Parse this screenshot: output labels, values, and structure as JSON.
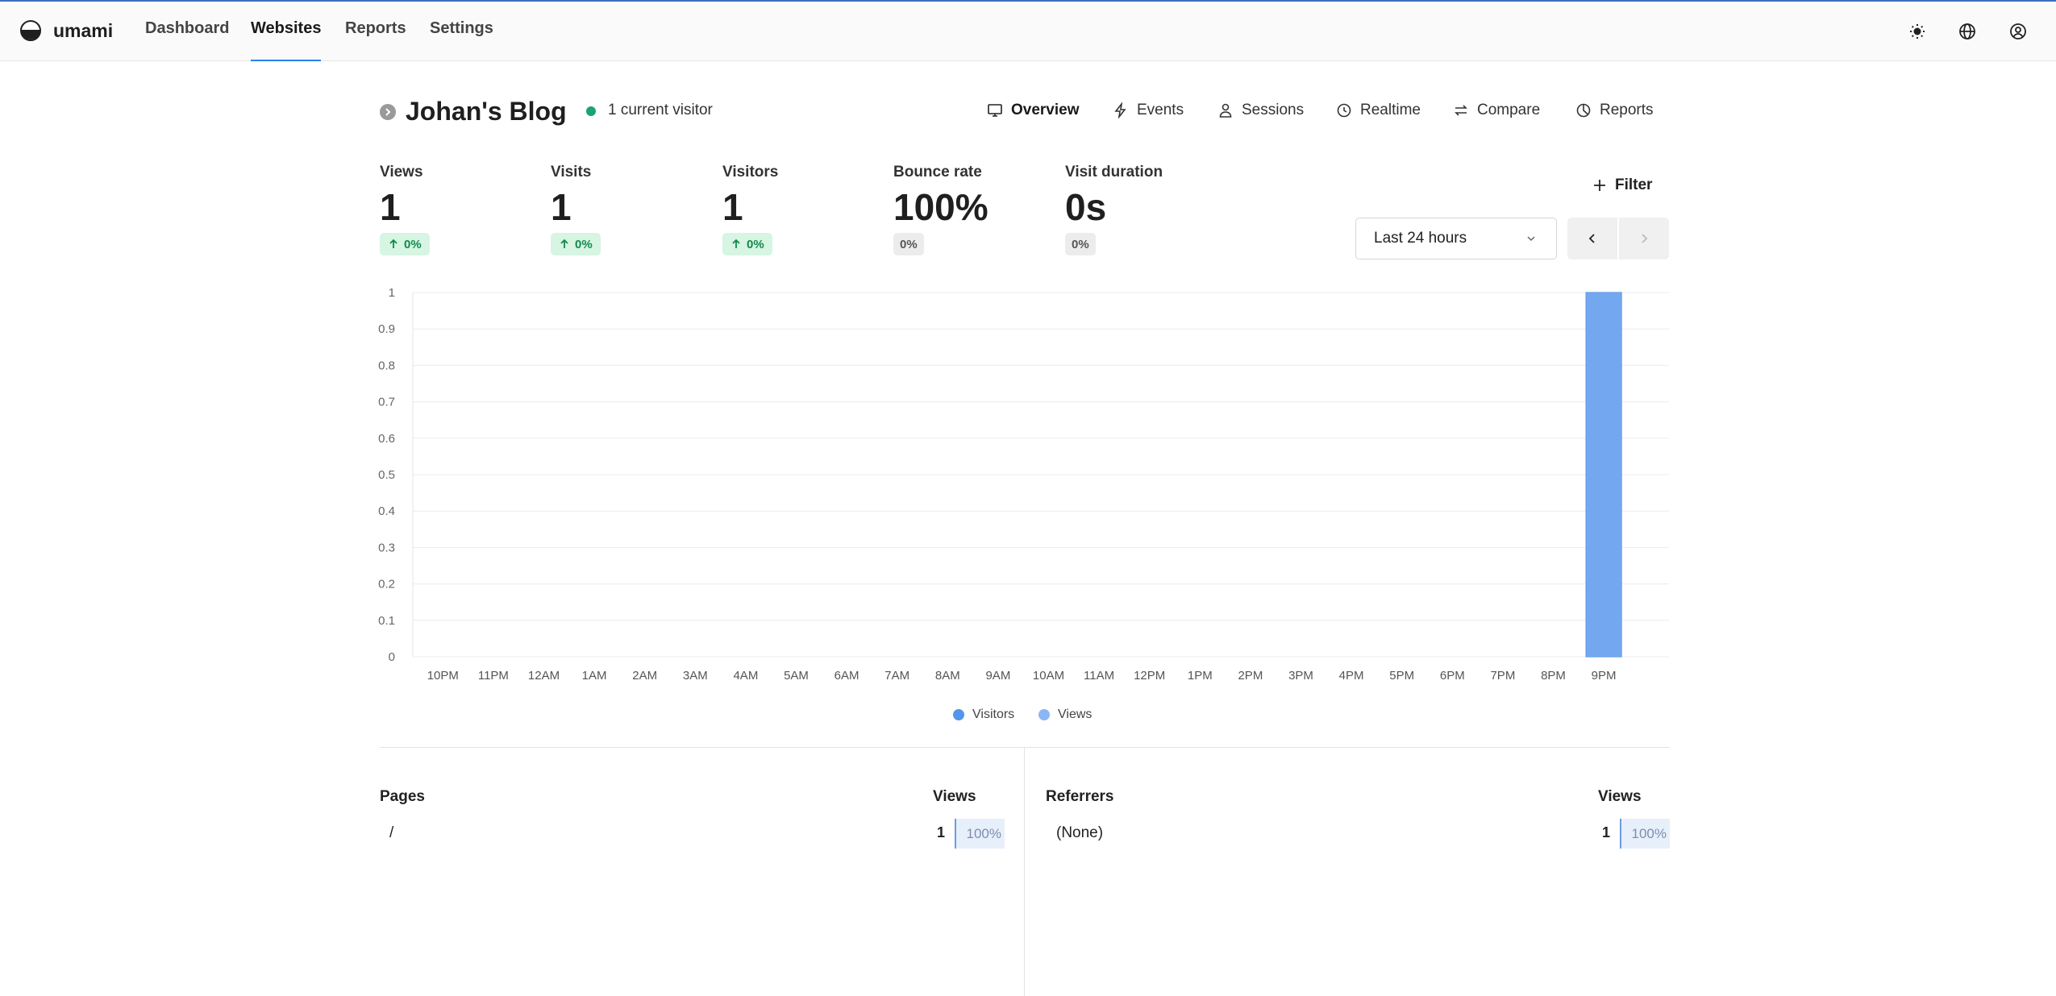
{
  "app": {
    "name": "umami",
    "nav": [
      {
        "label": "Dashboard"
      },
      {
        "label": "Websites"
      },
      {
        "label": "Reports"
      },
      {
        "label": "Settings"
      }
    ],
    "active_nav": "Websites",
    "top_icons": [
      "sun-icon",
      "globe-icon",
      "user-profile-icon"
    ]
  },
  "header": {
    "title": "Johan's Blog",
    "live_text": "1 current visitor",
    "tabs": [
      {
        "label": "Overview",
        "icon": "monitor-icon",
        "active": true
      },
      {
        "label": "Events",
        "icon": "lightning-icon",
        "active": false
      },
      {
        "label": "Sessions",
        "icon": "user-icon",
        "active": false
      },
      {
        "label": "Realtime",
        "icon": "clock-icon",
        "active": false
      },
      {
        "label": "Compare",
        "icon": "swap-arrows-icon",
        "active": false
      },
      {
        "label": "Reports",
        "icon": "pie-chart-icon",
        "active": false
      }
    ]
  },
  "metrics": [
    {
      "label": "Views",
      "value": "1",
      "change": "0%",
      "trend": "up"
    },
    {
      "label": "Visits",
      "value": "1",
      "change": "0%",
      "trend": "up"
    },
    {
      "label": "Visitors",
      "value": "1",
      "change": "0%",
      "trend": "up"
    },
    {
      "label": "Bounce rate",
      "value": "100%",
      "change": "0%",
      "trend": "flat"
    },
    {
      "label": "Visit duration",
      "value": "0s",
      "change": "0%",
      "trend": "flat"
    }
  ],
  "controls": {
    "filter_label": "Filter",
    "date_range": "Last 24 hours"
  },
  "chart_data": {
    "type": "bar",
    "categories": [
      "10PM",
      "11PM",
      "12AM",
      "1AM",
      "2AM",
      "3AM",
      "4AM",
      "5AM",
      "6AM",
      "7AM",
      "8AM",
      "9AM",
      "10AM",
      "11AM",
      "12PM",
      "1PM",
      "2PM",
      "3PM",
      "4PM",
      "5PM",
      "6PM",
      "7PM",
      "8PM",
      "9PM"
    ],
    "series": [
      {
        "name": "Visitors",
        "values": [
          0,
          0,
          0,
          0,
          0,
          0,
          0,
          0,
          0,
          0,
          0,
          0,
          0,
          0,
          0,
          0,
          0,
          0,
          0,
          0,
          0,
          0,
          0,
          1
        ]
      },
      {
        "name": "Views",
        "values": [
          0,
          0,
          0,
          0,
          0,
          0,
          0,
          0,
          0,
          0,
          0,
          0,
          0,
          0,
          0,
          0,
          0,
          0,
          0,
          0,
          0,
          0,
          0,
          1
        ]
      }
    ],
    "yticks": [
      "0",
      "0.1",
      "0.2",
      "0.3",
      "0.4",
      "0.5",
      "0.6",
      "0.7",
      "0.8",
      "0.9",
      "1"
    ],
    "ylim": [
      0,
      1
    ],
    "grid": true,
    "legend": "bottom-center",
    "colors": {
      "Visitors": "#5396ec",
      "Views": "#8ab6f3"
    }
  },
  "pages": {
    "title": "Pages",
    "col": "Views",
    "rows": [
      {
        "label": "/",
        "count": "1",
        "pct": "100%"
      }
    ]
  },
  "referrers": {
    "title": "Referrers",
    "col": "Views",
    "rows": [
      {
        "label": "(None)",
        "count": "1",
        "pct": "100%"
      }
    ]
  }
}
